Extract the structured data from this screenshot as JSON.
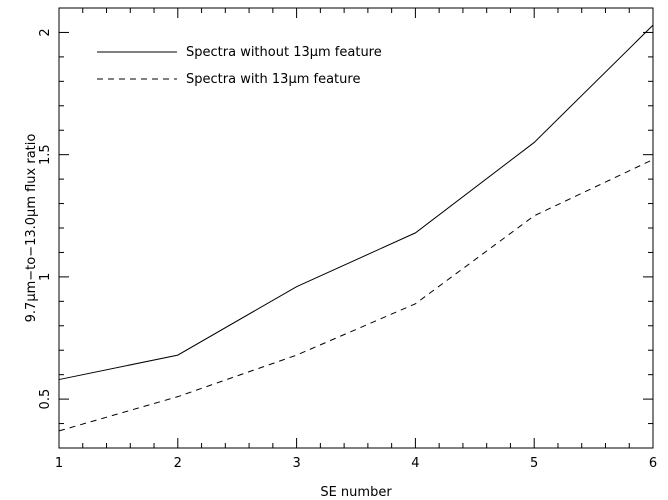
{
  "chart_data": {
    "type": "line",
    "title": "",
    "xlabel": "SE number",
    "ylabel": "9.7μm−to−13.0μm flux ratio",
    "xlim": [
      1,
      6
    ],
    "ylim": [
      0.3,
      2.1
    ],
    "xticks": [
      "1",
      "2",
      "3",
      "4",
      "5",
      "6"
    ],
    "yticks": [
      "0.5",
      "1",
      "1.5",
      "2"
    ],
    "grid": false,
    "legend_position": "top-left",
    "x": [
      1,
      2,
      3,
      4,
      5,
      6
    ],
    "series": [
      {
        "name": "Spectra without 13μm feature",
        "style": "solid",
        "color": "#000000",
        "values": [
          0.58,
          0.68,
          0.96,
          1.18,
          1.55,
          2.03
        ]
      },
      {
        "name": "Spectra with 13μm feature",
        "style": "dashed",
        "color": "#000000",
        "values": [
          0.37,
          0.51,
          0.68,
          0.89,
          1.25,
          1.48
        ]
      }
    ]
  }
}
